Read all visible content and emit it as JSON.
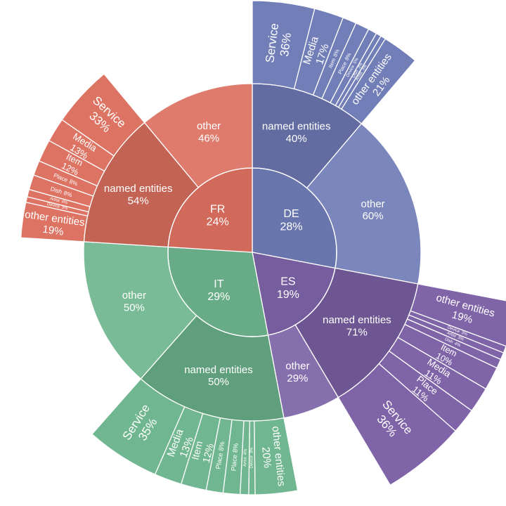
{
  "chart_data": {
    "type": "sunburst",
    "title": "",
    "colors": {
      "DE": "#6f7bb6",
      "ES": "#7c62a6",
      "IT": "#6db58e",
      "FR": "#dc7060"
    },
    "languages": [
      {
        "name": "DE",
        "pct": 28,
        "label": "DE",
        "pct_label": "28%",
        "color_key": "DE",
        "children": [
          {
            "name": "named entities",
            "pct": 40,
            "label": "named entities",
            "pct_label": "40%",
            "tier": "dark",
            "children": [
              {
                "name": "Service",
                "pct": 36,
                "label": "Service",
                "pct_label": "36%"
              },
              {
                "name": "Media",
                "pct": 17,
                "label": "Media",
                "pct_label": "17%"
              },
              {
                "name": "Item",
                "pct": 8,
                "label": "Item",
                "pct_label": "8%"
              },
              {
                "name": "Place",
                "pct": 8,
                "label": "Place",
                "pct_label": "8%"
              },
              {
                "name": "Device",
                "pct": 5,
                "label": "Device",
                "pct_label": "5%"
              },
              {
                "name": "Dish",
                "pct": 3,
                "label": "Dish",
                "pct_label": "3%"
              },
              {
                "name": "Artist",
                "pct": 3,
                "label": "Artist",
                "pct_label": "3%"
              },
              {
                "name": "other entities",
                "pct": 21,
                "label": "other entities",
                "pct_label": "21%"
              }
            ]
          },
          {
            "name": "other",
            "pct": 60,
            "label": "other",
            "pct_label": "60%",
            "tier": "light"
          }
        ]
      },
      {
        "name": "ES",
        "pct": 19,
        "label": "ES",
        "pct_label": "19%",
        "color_key": "ES",
        "children": [
          {
            "name": "named entities",
            "pct": 71,
            "label": "named entities",
            "pct_label": "71%",
            "tier": "dark",
            "children": [
              {
                "name": "other entities",
                "pct": 19,
                "label": "other entities",
                "pct_label": "19%"
              },
              {
                "name": "Device",
                "pct": 3,
                "label": "Device",
                "pct_label": "3%"
              },
              {
                "name": "Artist",
                "pct": 3,
                "label": "Artist",
                "pct_label": "3%"
              },
              {
                "name": "Dish",
                "pct": 4,
                "label": "Dish",
                "pct_label": "4%"
              },
              {
                "name": "Item",
                "pct": 10,
                "label": "Item",
                "pct_label": "10%"
              },
              {
                "name": "Media",
                "pct": 11,
                "label": "Media",
                "pct_label": "11%"
              },
              {
                "name": "Place",
                "pct": 11,
                "label": "Place",
                "pct_label": "11%"
              },
              {
                "name": "Service",
                "pct": 36,
                "label": "Service",
                "pct_label": "36%"
              }
            ]
          },
          {
            "name": "other",
            "pct": 29,
            "label": "other",
            "pct_label": "29%",
            "tier": "light"
          }
        ]
      },
      {
        "name": "IT",
        "pct": 29,
        "label": "IT",
        "pct_label": "29%",
        "color_key": "IT",
        "children": [
          {
            "name": "named entities",
            "pct": 50,
            "label": "named entities",
            "pct_label": "50%",
            "tier": "dark",
            "children": [
              {
                "name": "other entities",
                "pct": 20,
                "label": "other entities",
                "pct_label": "20%"
              },
              {
                "name": "Device",
                "pct": 3,
                "label": "Device",
                "pct_label": "3%"
              },
              {
                "name": "Artist",
                "pct": 4,
                "label": "Artist",
                "pct_label": "4%"
              },
              {
                "name": "Place",
                "pct": 8,
                "label": "Place",
                "pct_label": "8%"
              },
              {
                "name": "Place",
                "pct": 8,
                "label": "Place",
                "pct_label": "8%"
              },
              {
                "name": "Item",
                "pct": 12,
                "label": "Item",
                "pct_label": "12%"
              },
              {
                "name": "Media",
                "pct": 13,
                "label": "Media",
                "pct_label": "13%"
              },
              {
                "name": "Service",
                "pct": 35,
                "label": "Service",
                "pct_label": "35%"
              }
            ]
          },
          {
            "name": "other",
            "pct": 50,
            "label": "other",
            "pct_label": "50%",
            "tier": "light"
          }
        ]
      },
      {
        "name": "FR",
        "pct": 24,
        "label": "FR",
        "pct_label": "24%",
        "color_key": "FR",
        "children": [
          {
            "name": "named entities",
            "pct": 54,
            "label": "named entities",
            "pct_label": "54%",
            "tier": "dark",
            "children": [
              {
                "name": "other entities",
                "pct": 19,
                "label": "other entities",
                "pct_label": "19%"
              },
              {
                "name": "Device",
                "pct": 3,
                "label": "Device",
                "pct_label": "3%"
              },
              {
                "name": "Artist",
                "pct": 4,
                "label": "Artist",
                "pct_label": "4%"
              },
              {
                "name": "Dish",
                "pct": 8,
                "label": "Dish",
                "pct_label": "8%"
              },
              {
                "name": "Place",
                "pct": 8,
                "label": "Place",
                "pct_label": "8%"
              },
              {
                "name": "Item",
                "pct": 12,
                "label": "Item",
                "pct_label": "12%"
              },
              {
                "name": "Media",
                "pct": 13,
                "label": "Media",
                "pct_label": "13%"
              },
              {
                "name": "Service",
                "pct": 33,
                "label": "Service",
                "pct_label": "33%"
              }
            ]
          },
          {
            "name": "other",
            "pct": 46,
            "label": "other",
            "pct_label": "46%",
            "tier": "light"
          }
        ]
      }
    ]
  }
}
